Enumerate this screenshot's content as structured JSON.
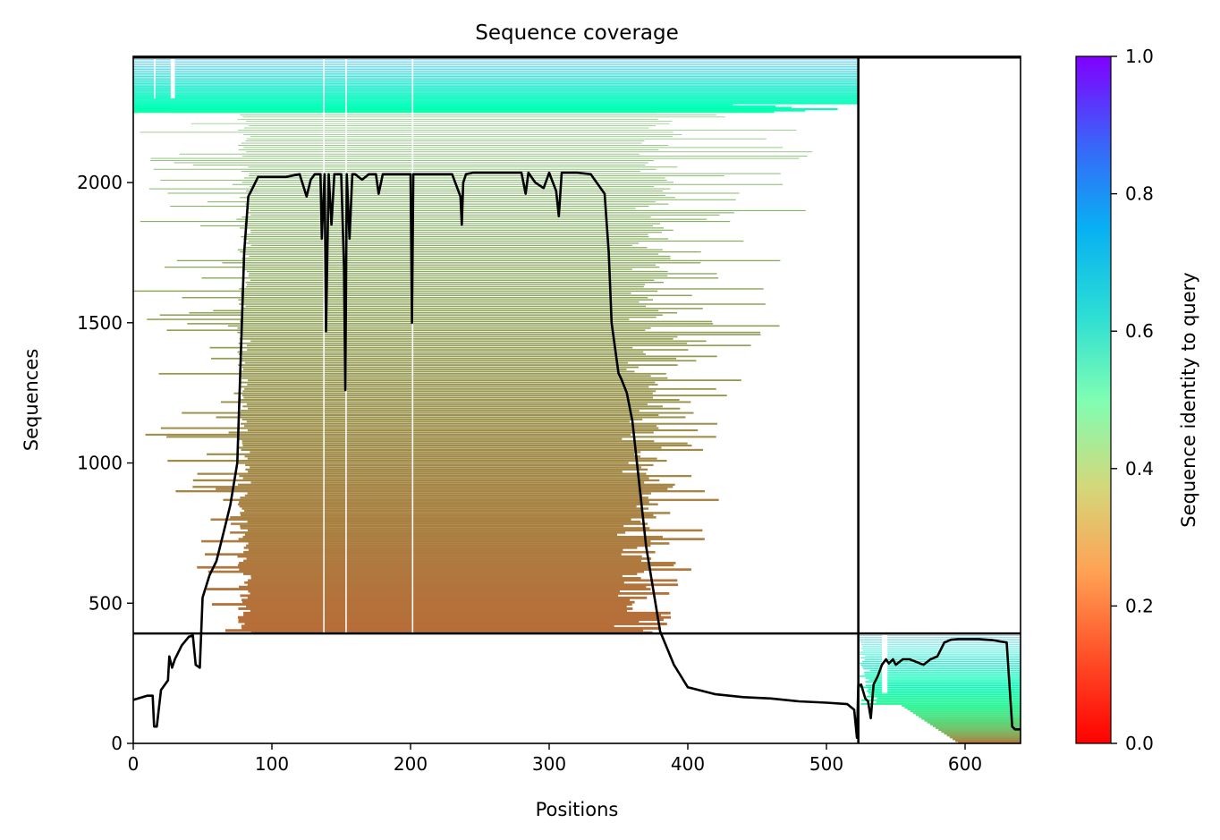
{
  "chart_data": {
    "type": "heatmap",
    "title": "Sequence coverage",
    "xlabel": "Positions",
    "ylabel": "Sequences",
    "xlim": [
      0,
      640
    ],
    "ylim": [
      0,
      2450
    ],
    "x_ticks": [
      "0",
      "100",
      "200",
      "300",
      "400",
      "500",
      "600"
    ],
    "y_ticks": [
      "0",
      "500",
      "1000",
      "1500",
      "2000"
    ],
    "x_tick_values": [
      0,
      100,
      200,
      300,
      400,
      500,
      600
    ],
    "y_tick_values": [
      0,
      500,
      1000,
      1500,
      2000
    ],
    "colorbar": {
      "label": "Sequence identity to query",
      "range": [
        0,
        1
      ],
      "ticks": [
        "0.0",
        "0.2",
        "0.4",
        "0.6",
        "0.8",
        "1.0"
      ],
      "tick_values": [
        0,
        0.2,
        0.4,
        0.6,
        0.8,
        1.0
      ],
      "colormap": "rainbow_r"
    },
    "chain_boundary_x": 523,
    "chain_boundary_y": 392,
    "blocks": [
      {
        "name": "chain-1-paired-top",
        "x": [
          0,
          523
        ],
        "y_from": 2250,
        "y_to": 2450,
        "identity_from": 0.45,
        "identity_to": 0.72
      },
      {
        "name": "chain-1-main",
        "x_start": 85,
        "x_end": 345,
        "y_from": 392,
        "y_to": 2250,
        "identity_from": 0.14,
        "identity_to": 0.27
      },
      {
        "name": "chain-2-block",
        "x": [
          523,
          640
        ],
        "y_from": 0,
        "y_to": 392,
        "identity_from": 0.14,
        "identity_to": 0.7
      }
    ],
    "coverage_line": {
      "x": [
        0,
        10,
        14,
        15,
        17,
        20,
        25,
        26,
        28,
        30,
        35,
        40,
        43,
        45,
        48,
        50,
        55,
        60,
        65,
        70,
        75,
        80,
        83,
        85,
        90,
        100,
        110,
        120,
        125,
        128,
        131,
        133,
        135,
        136,
        138,
        139,
        141,
        143,
        145,
        150,
        152,
        153,
        154,
        156,
        158,
        160,
        165,
        170,
        175,
        177,
        180,
        190,
        200,
        201,
        202,
        204,
        210,
        220,
        230,
        236,
        237,
        238,
        240,
        245,
        260,
        280,
        283,
        285,
        290,
        296,
        300,
        305,
        307,
        309,
        312,
        320,
        330,
        340,
        343,
        345,
        350,
        352,
        356,
        360,
        370,
        380,
        390,
        400,
        420,
        440,
        460,
        480,
        500,
        515,
        520,
        522,
        523,
        525,
        528,
        530,
        532,
        534,
        537,
        540,
        543,
        545,
        548,
        550,
        555,
        560,
        565,
        570,
        575,
        580,
        585,
        590,
        595,
        600,
        610,
        620,
        630,
        634,
        636,
        638,
        640
      ],
      "y": [
        155,
        170,
        170,
        60,
        60,
        190,
        225,
        310,
        270,
        300,
        350,
        380,
        385,
        280,
        270,
        520,
        600,
        650,
        750,
        850,
        1000,
        1750,
        1950,
        1970,
        2020,
        2020,
        2020,
        2030,
        1950,
        2010,
        2030,
        2030,
        2030,
        1800,
        2030,
        1470,
        2030,
        1850,
        2030,
        2030,
        1700,
        1260,
        2030,
        1800,
        2030,
        2030,
        2010,
        2030,
        2030,
        1960,
        2030,
        2030,
        2030,
        1500,
        2030,
        2030,
        2030,
        2030,
        2030,
        1950,
        1850,
        2000,
        2030,
        2035,
        2035,
        2035,
        1960,
        2035,
        2000,
        1980,
        2035,
        1970,
        1880,
        2035,
        2035,
        2035,
        2030,
        1960,
        1750,
        1500,
        1320,
        1300,
        1250,
        1150,
        700,
        400,
        280,
        200,
        175,
        165,
        160,
        150,
        145,
        140,
        120,
        20,
        205,
        210,
        160,
        150,
        90,
        210,
        240,
        280,
        300,
        285,
        300,
        280,
        300,
        300,
        290,
        280,
        300,
        310,
        360,
        370,
        372,
        372,
        372,
        368,
        360,
        60,
        50,
        50,
        50
      ]
    }
  }
}
